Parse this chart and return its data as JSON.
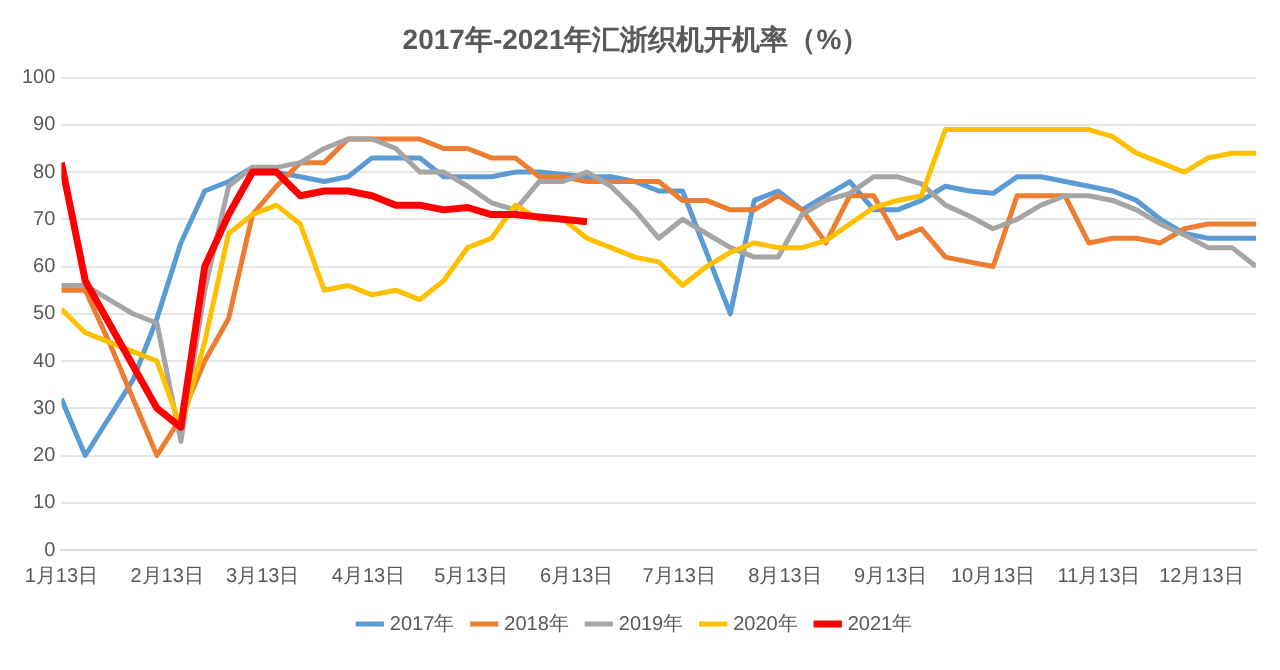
{
  "chart_data": {
    "type": "line",
    "title": "2017年-2021年汇浙织机开机率（%）",
    "x": [
      "--01-13",
      "--01-20",
      "--01-27",
      "--02-03",
      "--02-10",
      "--02-17",
      "--02-24",
      "--03-03",
      "--03-10",
      "--03-17",
      "--03-24",
      "--03-31",
      "--04-07",
      "--04-14",
      "--04-21",
      "--04-28",
      "--05-05",
      "--05-12",
      "--05-19",
      "--05-26",
      "--06-02",
      "--06-09",
      "--06-16",
      "--06-23",
      "--06-30",
      "--07-07",
      "--07-14",
      "--07-21",
      "--07-28",
      "--08-04",
      "--08-11",
      "--08-18",
      "--08-25",
      "--09-01",
      "--09-08",
      "--09-15",
      "--09-22",
      "--09-29",
      "--10-06",
      "--10-13",
      "--10-20",
      "--10-27",
      "--11-03",
      "--11-10",
      "--11-17",
      "--11-24",
      "--12-01",
      "--12-08",
      "--12-15",
      "--12-22",
      "--12-29"
    ],
    "series": [
      {
        "name": "2017年",
        "color": "#5b9bd5",
        "values": [
          32,
          20,
          28,
          36,
          49,
          65,
          76,
          78,
          81,
          80,
          79,
          78,
          79,
          83,
          83,
          83,
          79,
          79,
          79,
          80,
          80,
          79.5,
          79,
          79,
          78,
          76,
          76,
          63,
          50,
          74,
          76,
          72,
          75,
          78,
          72,
          72,
          74,
          77,
          76,
          75.5,
          79,
          79,
          78,
          77,
          76,
          74,
          70,
          67,
          66,
          66,
          66
        ]
      },
      {
        "name": "2018年",
        "color": "#ed7d31",
        "values": [
          55,
          55,
          44,
          32,
          20,
          28,
          40,
          49,
          71,
          77,
          82,
          82,
          87,
          87,
          87,
          87,
          85,
          85,
          83,
          83,
          79,
          79,
          78,
          78,
          78,
          78,
          74,
          74,
          72,
          72,
          75,
          72,
          65,
          75,
          75,
          66,
          68,
          62,
          61,
          60,
          75,
          75,
          75,
          65,
          66,
          66,
          65,
          68,
          69,
          69,
          69
        ]
      },
      {
        "name": "2019年",
        "color": "#a5a5a5",
        "values": [
          56,
          56,
          53,
          50,
          48,
          23,
          55,
          77,
          81,
          81,
          82,
          85,
          87,
          87,
          85,
          80,
          80,
          77,
          73.5,
          72,
          78,
          78,
          80,
          77,
          72,
          66,
          70,
          67,
          64,
          62,
          62,
          71,
          74,
          75.5,
          79,
          79,
          77.5,
          73,
          70.7,
          68,
          70,
          73,
          75,
          75,
          74,
          72,
          69,
          66.7,
          64,
          64,
          60
        ]
      },
      {
        "name": "2020年",
        "color": "#ffc000",
        "values": [
          51,
          46,
          44,
          42,
          40,
          26,
          44,
          67,
          71,
          73,
          69,
          55,
          56,
          54,
          55,
          53,
          57,
          64,
          66,
          73,
          70,
          70,
          66,
          64,
          62,
          61,
          56,
          60,
          63,
          65,
          64,
          64,
          65.5,
          69,
          72.5,
          74,
          75,
          89,
          89,
          89,
          89,
          89,
          89,
          89,
          87.5,
          84,
          82,
          80,
          83,
          84,
          84
        ]
      },
      {
        "name": "2021年",
        "color": "#ff0000",
        "values": [
          82,
          57,
          48,
          39,
          30,
          26,
          60,
          71,
          80,
          80,
          75,
          76,
          76,
          75,
          73,
          73,
          72,
          72.5,
          71,
          71,
          70.5,
          70,
          69.5,
          null,
          null,
          null,
          null,
          null,
          null,
          null,
          null,
          null,
          null,
          null,
          null,
          null,
          null,
          null,
          null,
          null,
          null,
          null,
          null,
          null,
          null,
          null,
          null,
          null,
          null,
          null,
          null
        ]
      }
    ],
    "xlim": [
      "--01-13",
      "--12-29"
    ],
    "xticks": [
      {
        "value": "--01-13",
        "label": "1月13日"
      },
      {
        "value": "--02-13",
        "label": "2月13日"
      },
      {
        "value": "--03-13",
        "label": "3月13日"
      },
      {
        "value": "--04-13",
        "label": "4月13日"
      },
      {
        "value": "--05-13",
        "label": "5月13日"
      },
      {
        "value": "--06-13",
        "label": "6月13日"
      },
      {
        "value": "--07-13",
        "label": "7月13日"
      },
      {
        "value": "--08-13",
        "label": "8月13日"
      },
      {
        "value": "--09-13",
        "label": "9月13日"
      },
      {
        "value": "--10-13",
        "label": "10月13日"
      },
      {
        "value": "--11-13",
        "label": "11月13日"
      },
      {
        "value": "--12-13",
        "label": "12月13日"
      }
    ],
    "ylim": [
      0,
      100
    ],
    "yticks": [
      0,
      10,
      20,
      30,
      40,
      50,
      60,
      70,
      80,
      90,
      100
    ],
    "grid": "y",
    "legend": "bottom",
    "marker": "none",
    "line_style": "solid"
  }
}
